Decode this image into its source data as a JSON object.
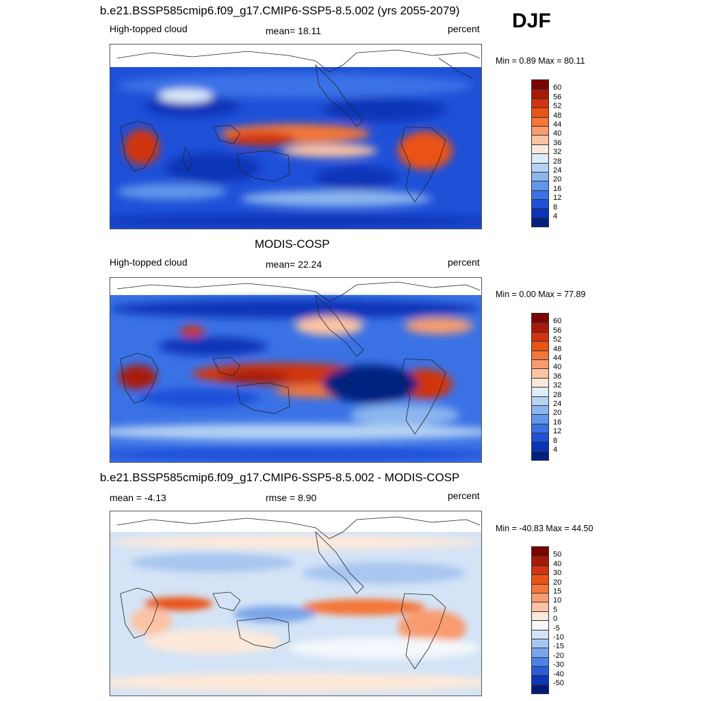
{
  "season": "DJF",
  "panels": [
    {
      "id": "model",
      "title": "b.e21.BSSP585cmip6.f09_g17.CMIP6-SSP5-8.5.002 (yrs 2055-2079)",
      "left_label": "High-topped cloud",
      "center_label": "mean=  18.11",
      "right_label": "percent",
      "minmax": "Min =   0.89 Max =  80.11",
      "colorbar": {
        "labels": [
          "60",
          "56",
          "52",
          "48",
          "44",
          "40",
          "36",
          "32",
          "28",
          "24",
          "20",
          "16",
          "12",
          "8",
          "4"
        ],
        "colors": [
          "#7a0403",
          "#a81a08",
          "#d03411",
          "#ea5316",
          "#f47638",
          "#f89c70",
          "#fbc3a4",
          "#fde9da",
          "#dcebf8",
          "#b6d3f4",
          "#8bb5ee",
          "#6196ea",
          "#3a72e6",
          "#1e50d8",
          "#0a34b8",
          "#04207f"
        ]
      }
    },
    {
      "id": "obs",
      "title": "MODIS-COSP",
      "left_label": "High-topped cloud",
      "center_label": "mean=  22.24",
      "right_label": "percent",
      "minmax": "Min =   0.00 Max =  77.89",
      "colorbar": {
        "labels": [
          "60",
          "56",
          "52",
          "48",
          "44",
          "40",
          "36",
          "32",
          "28",
          "24",
          "20",
          "16",
          "12",
          "8",
          "4"
        ],
        "colors": [
          "#7a0403",
          "#a81a08",
          "#d03411",
          "#ea5316",
          "#f47638",
          "#f89c70",
          "#fbc3a4",
          "#fde9da",
          "#dcebf8",
          "#b6d3f4",
          "#8bb5ee",
          "#6196ea",
          "#3a72e6",
          "#1e50d8",
          "#0a34b8",
          "#04207f"
        ]
      }
    },
    {
      "id": "diff",
      "title": "b.e21.BSSP585cmip6.f09_g17.CMIP6-SSP5-8.5.002 - MODIS-COSP",
      "left_label": "mean =  -4.13",
      "center_label": "rmse =   8.90",
      "right_label": "percent",
      "minmax": "Min = -40.83 Max =  44.50",
      "colorbar": {
        "labels": [
          "50",
          "40",
          "30",
          "20",
          "15",
          "10",
          "5",
          "0",
          "-5",
          "-10",
          "-15",
          "-20",
          "-30",
          "-40",
          "-50"
        ],
        "colors": [
          "#7a0403",
          "#a81a08",
          "#d03411",
          "#ea5316",
          "#f47638",
          "#f89c70",
          "#fbc3a4",
          "#fde9da",
          "#f4f7fb",
          "#d4e4f6",
          "#a9c6f0",
          "#7ba5ea",
          "#4f82e5",
          "#2a5cda",
          "#0e37b6",
          "#041a7a"
        ]
      }
    }
  ]
}
